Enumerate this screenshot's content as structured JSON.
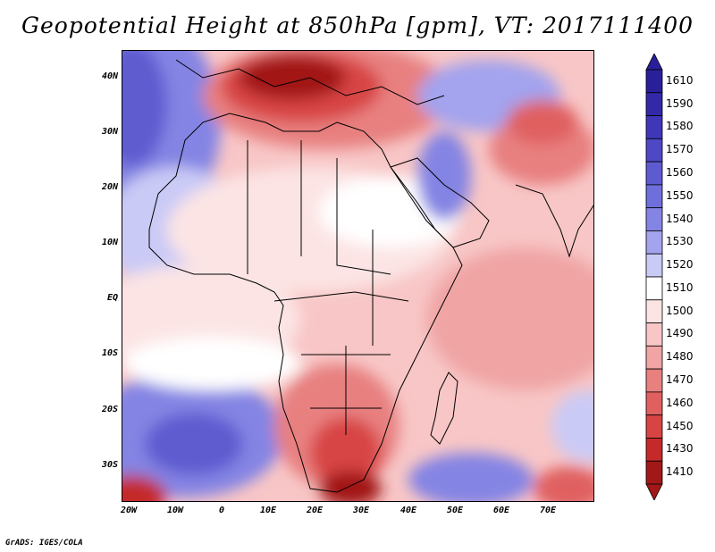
{
  "title": "Geopotential Height at 850hPa [gpm], VT: 2017111400",
  "credit": "GrADS: IGES/COLA",
  "map": {
    "region": "Africa and surroundings",
    "projection": "lat-lon",
    "lat_labels": [
      "40N",
      "30N",
      "20N",
      "10N",
      "EQ",
      "10S",
      "20S",
      "30S"
    ],
    "lon_labels": [
      "20W",
      "10W",
      "0",
      "10E",
      "20E",
      "30E",
      "40E",
      "50E",
      "60E",
      "70E"
    ]
  },
  "colorbar": {
    "levels": [
      "1610",
      "1590",
      "1580",
      "1570",
      "1560",
      "1550",
      "1540",
      "1530",
      "1520",
      "1510",
      "1500",
      "1490",
      "1480",
      "1470",
      "1460",
      "1450",
      "1430",
      "1410"
    ],
    "colors": [
      "#2a1f9a",
      "#3328a8",
      "#3f37b8",
      "#4e48c4",
      "#5e5bd0",
      "#6f6fdc",
      "#8484e4",
      "#a3a3ee",
      "#cacaf6",
      "#ffffff",
      "#fce4e4",
      "#f8c6c6",
      "#f0a4a4",
      "#e88080",
      "#e06060",
      "#d84444",
      "#c42a2a",
      "#a21818"
    ]
  }
}
